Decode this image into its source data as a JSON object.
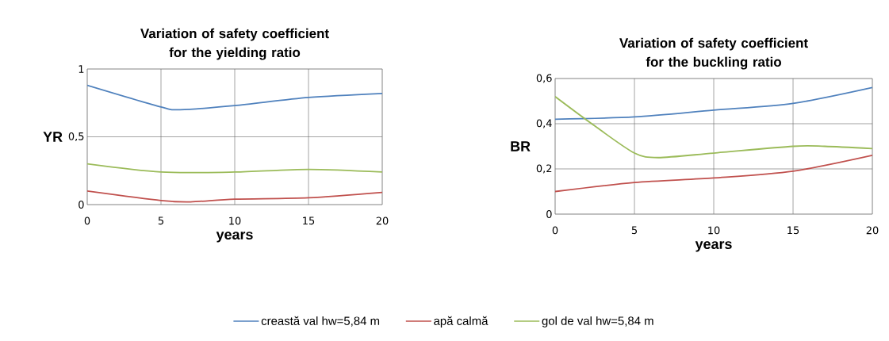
{
  "chart_data": [
    {
      "type": "line",
      "title": "Variation of safety coefficient for the yielding ratio",
      "xlabel": "years",
      "ylabel": "YR",
      "xlim": [
        0,
        20
      ],
      "xticks": [
        0,
        5,
        10,
        15,
        20
      ],
      "ylim": [
        0,
        1
      ],
      "yticks": [
        0,
        {
          "value": 0.5,
          "label": "0,5"
        },
        1
      ],
      "grid": true,
      "legend": "bottom",
      "marker": "none",
      "line_style": "solid",
      "series": [
        {
          "name": "creastă val hw=5,84 m",
          "color": "#4f81bd",
          "x": [
            0,
            5,
            6.3,
            10,
            15,
            20
          ],
          "values": [
            0.88,
            0.72,
            0.7,
            0.73,
            0.79,
            0.82
          ]
        },
        {
          "name": "apă calmă",
          "color": "#c0504d",
          "x": [
            0,
            5,
            7,
            10,
            15,
            20
          ],
          "values": [
            0.1,
            0.03,
            0.02,
            0.04,
            0.05,
            0.09
          ]
        },
        {
          "name": "gol de val hw=5,84 m",
          "color": "#9bbb59",
          "x": [
            0,
            5,
            10,
            15,
            20
          ],
          "values": [
            0.3,
            0.24,
            0.24,
            0.26,
            0.24
          ]
        }
      ]
    },
    {
      "type": "line",
      "title": "Variation of safety coefficient for the buckling ratio",
      "xlabel": "years",
      "ylabel": "BR",
      "xlim": [
        0,
        20
      ],
      "xticks": [
        0,
        5,
        10,
        15,
        20
      ],
      "ylim": [
        0,
        0.6
      ],
      "yticks": [
        0,
        {
          "value": 0.2,
          "label": "0,2"
        },
        {
          "value": 0.4,
          "label": "0,4"
        },
        {
          "value": 0.6,
          "label": "0,6"
        }
      ],
      "grid": true,
      "marker": "none",
      "line_style": "solid",
      "series": [
        {
          "color": "#4f81bd",
          "x": [
            0,
            5,
            10,
            15,
            20
          ],
          "values": [
            0.42,
            0.43,
            0.46,
            0.49,
            0.56
          ]
        },
        {
          "color": "#c0504d",
          "x": [
            0,
            5,
            10,
            15,
            20
          ],
          "values": [
            0.1,
            0.14,
            0.16,
            0.19,
            0.26
          ]
        },
        {
          "color": "#9bbb59",
          "x": [
            0,
            2.5,
            5,
            6.5,
            10,
            15,
            17,
            20
          ],
          "values": [
            0.52,
            0.39,
            0.27,
            0.25,
            0.27,
            0.3,
            0.3,
            0.29
          ]
        }
      ]
    }
  ]
}
